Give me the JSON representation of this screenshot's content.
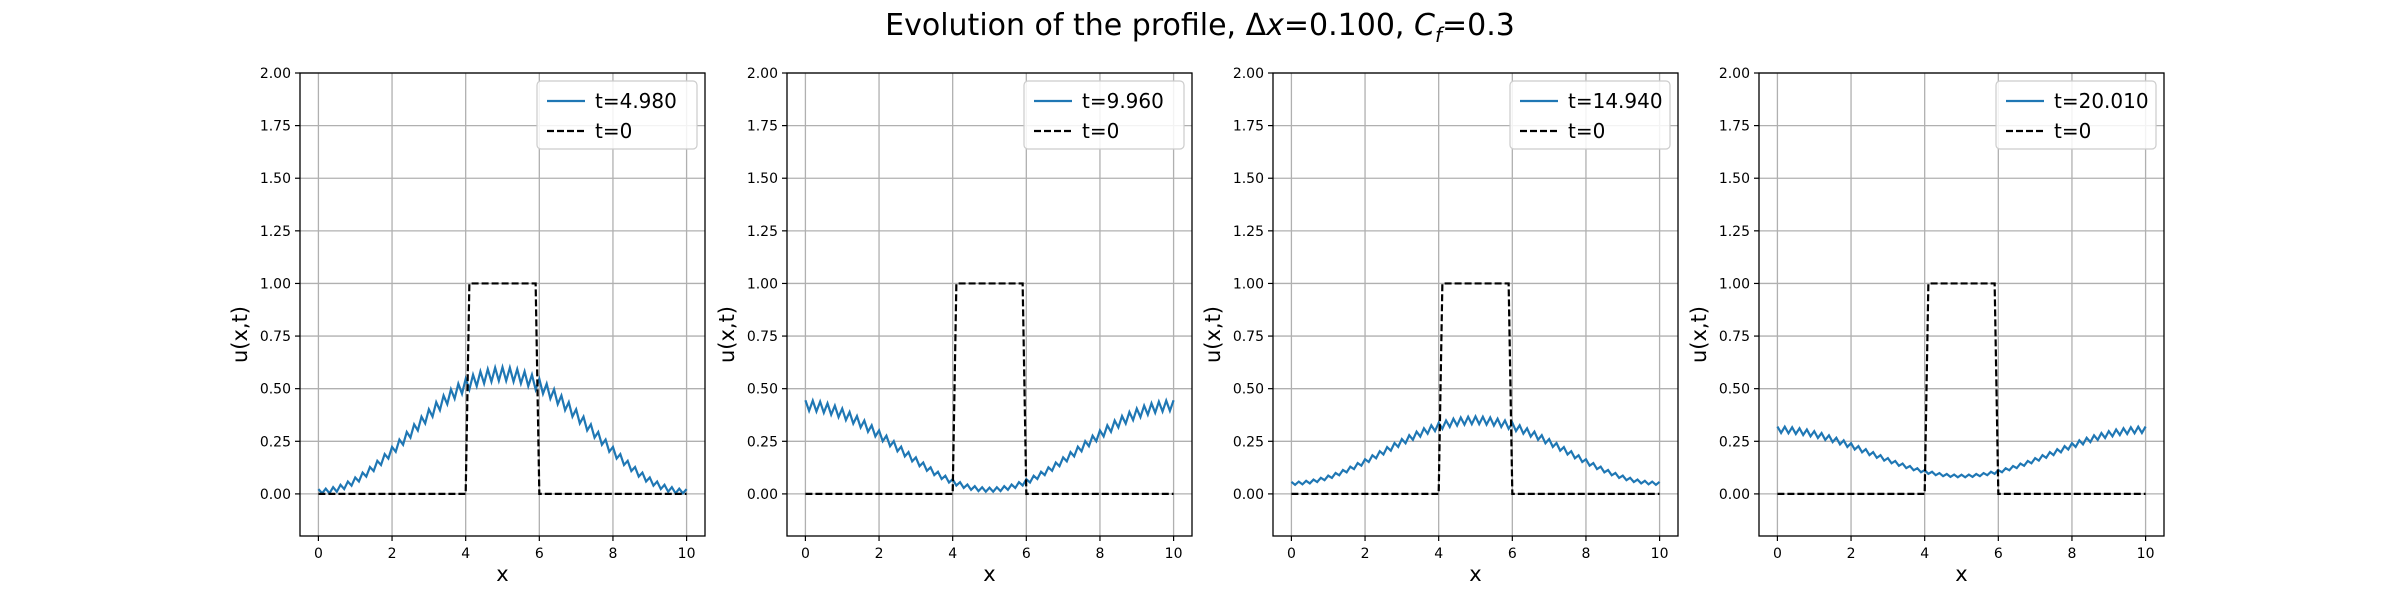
{
  "figure": {
    "title": {
      "prefix": "Evolution of the profile, Δ",
      "var_x": "x",
      "after_x": "=0.100, ",
      "var_c": "C",
      "sub_f": "f",
      "after_c": "=0.3"
    }
  },
  "colors": {
    "series_line": "#1f77b4",
    "initial_line": "#000000",
    "grid": "#b0b0b0",
    "axes": "#000000"
  },
  "chart_data": [
    {
      "type": "line",
      "xlabel": "x",
      "ylabel": "u(x,t)",
      "xlim": [
        -0.5,
        10.5
      ],
      "ylim": [
        -0.2,
        2.0
      ],
      "xticks": [
        0,
        2,
        4,
        6,
        8,
        10
      ],
      "yticks": [
        0.0,
        0.25,
        0.5,
        0.75,
        1.0,
        1.25,
        1.5,
        1.75,
        2.0
      ],
      "grid": true,
      "legend_position": "top-right",
      "series": [
        {
          "name": "t=4.980",
          "style": "solid",
          "kind": "cosine",
          "a": 0.29,
          "b": 0.28,
          "phase": 5.0,
          "osc": 0.032
        },
        {
          "name": "t=0",
          "style": "dashed",
          "kind": "step",
          "x": [
            0,
            4,
            4.1,
            5.9,
            6,
            10
          ],
          "y": [
            0,
            0,
            1,
            1,
            0,
            0
          ]
        }
      ]
    },
    {
      "type": "line",
      "xlabel": "x",
      "ylabel": "u(x,t)",
      "xlim": [
        -0.5,
        10.5
      ],
      "ylim": [
        -0.2,
        2.0
      ],
      "xticks": [
        0,
        2,
        4,
        6,
        8,
        10
      ],
      "yticks": [
        0.0,
        0.25,
        0.5,
        0.75,
        1.0,
        1.25,
        1.5,
        1.75,
        2.0
      ],
      "grid": true,
      "legend_position": "top-right",
      "series": [
        {
          "name": "t=9.960",
          "style": "solid",
          "kind": "cosine",
          "a": 0.22,
          "b": 0.2,
          "phase": 0.0,
          "osc": 0.025
        },
        {
          "name": "t=0",
          "style": "dashed",
          "kind": "step",
          "x": [
            0,
            4,
            4.1,
            5.9,
            6,
            10
          ],
          "y": [
            0,
            0,
            1,
            1,
            0,
            0
          ]
        }
      ]
    },
    {
      "type": "line",
      "xlabel": "x",
      "ylabel": "u(x,t)",
      "xlim": [
        -0.5,
        10.5
      ],
      "ylim": [
        -0.2,
        2.0
      ],
      "xticks": [
        0,
        2,
        4,
        6,
        8,
        10
      ],
      "yticks": [
        0.0,
        0.25,
        0.5,
        0.75,
        1.0,
        1.25,
        1.5,
        1.75,
        2.0
      ],
      "grid": true,
      "legend_position": "top-right",
      "series": [
        {
          "name": "t=14.940",
          "style": "solid",
          "kind": "cosine",
          "a": 0.2,
          "b": 0.15,
          "phase": 5.0,
          "osc": 0.018
        },
        {
          "name": "t=0",
          "style": "dashed",
          "kind": "step",
          "x": [
            0,
            4,
            4.1,
            5.9,
            6,
            10
          ],
          "y": [
            0,
            0,
            1,
            1,
            0,
            0
          ]
        }
      ]
    },
    {
      "type": "line",
      "xlabel": "x",
      "ylabel": "u(x,t)",
      "xlim": [
        -0.5,
        10.5
      ],
      "ylim": [
        -0.2,
        2.0
      ],
      "xticks": [
        0,
        2,
        4,
        6,
        8,
        10
      ],
      "yticks": [
        0.0,
        0.25,
        0.5,
        0.75,
        1.0,
        1.25,
        1.5,
        1.75,
        2.0
      ],
      "grid": true,
      "legend_position": "top-right",
      "series": [
        {
          "name": "t=20.010",
          "style": "solid",
          "kind": "cosine",
          "a": 0.195,
          "b": 0.11,
          "phase": 0.0,
          "osc": 0.015
        },
        {
          "name": "t=0",
          "style": "dashed",
          "kind": "step",
          "x": [
            0,
            4,
            4.1,
            5.9,
            6,
            10
          ],
          "y": [
            0,
            0,
            1,
            1,
            0,
            0
          ]
        }
      ]
    }
  ]
}
